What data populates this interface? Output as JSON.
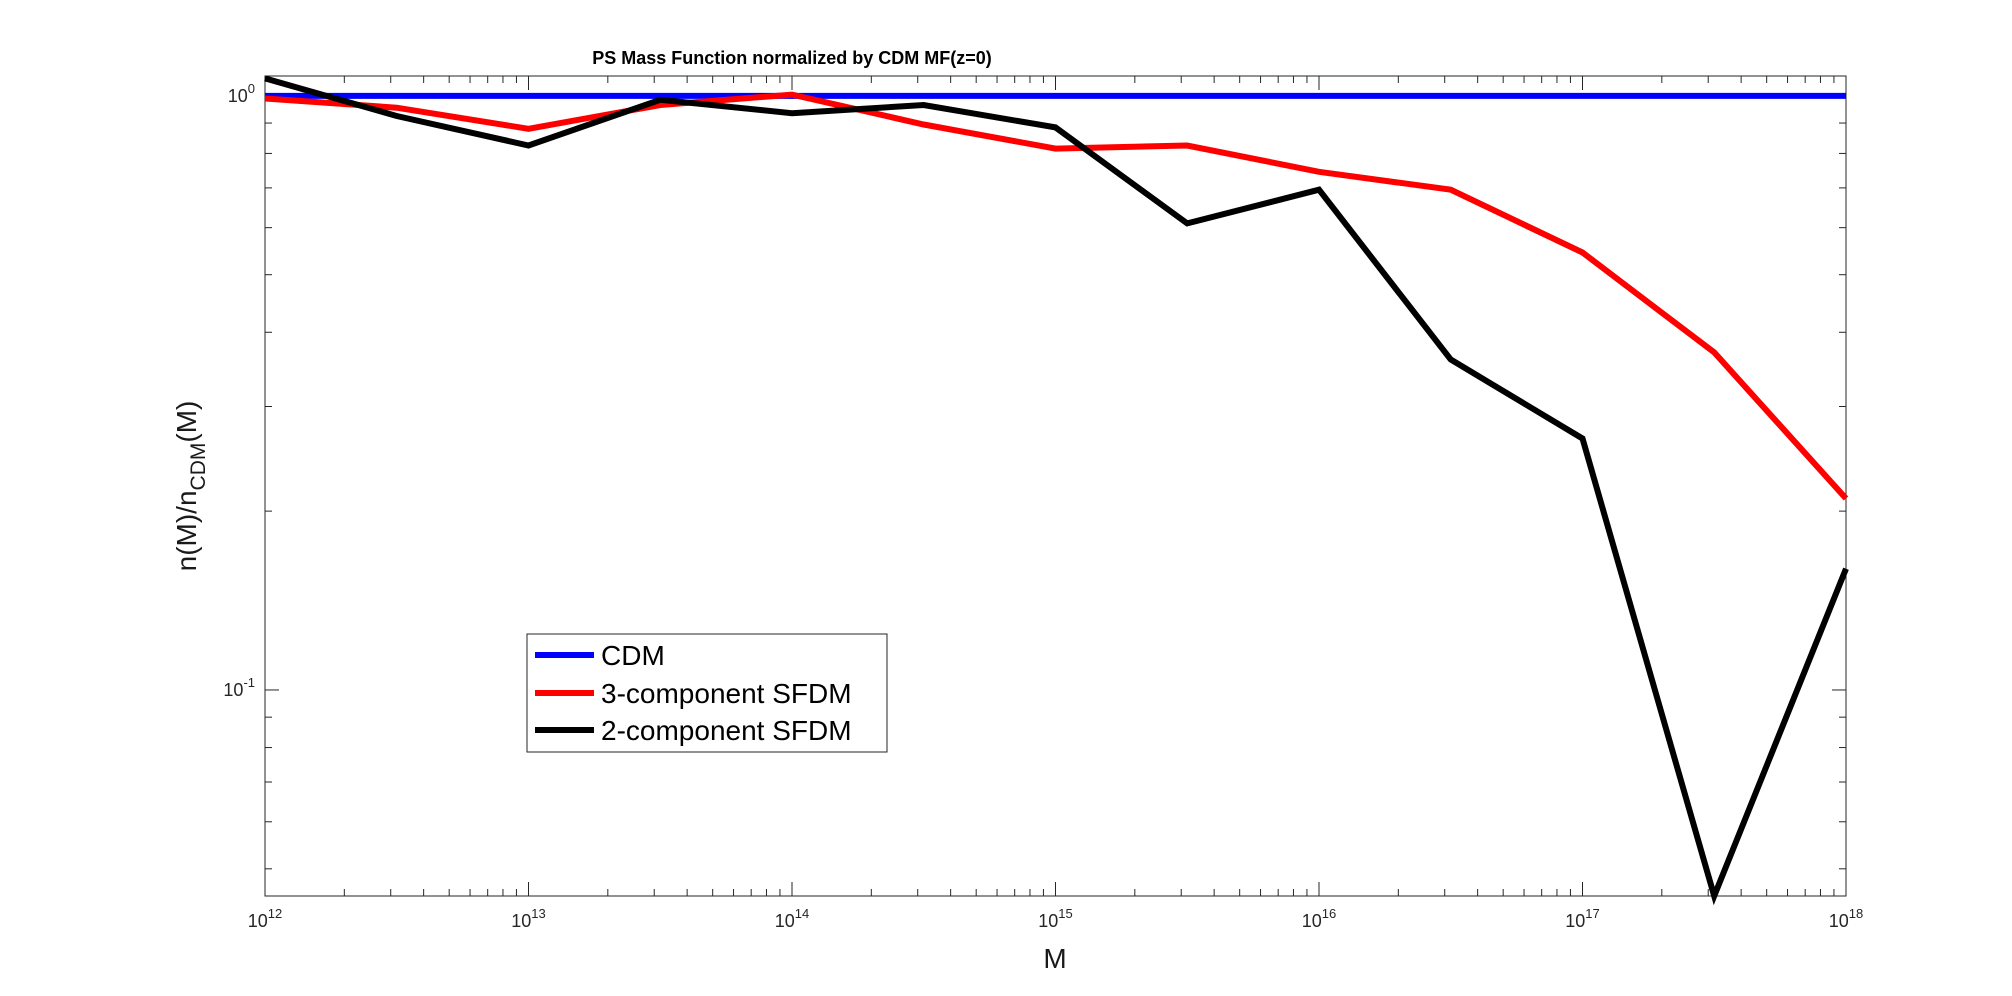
{
  "chart_data": {
    "type": "line",
    "title": "PS Mass Function normalized by CDM MF(z=0)",
    "xlabel": "M",
    "ylabel_main": "n(M)/n",
    "ylabel_sub": "CDM",
    "ylabel_tail": "(M)",
    "xscale": "log",
    "yscale": "log",
    "xlim": [
      1000000000000.0,
      1e+18
    ],
    "ylim": [
      0.045,
      1.08
    ],
    "x_ticks": [
      {
        "base": "10",
        "exp": "12",
        "value": 1000000000000.0
      },
      {
        "base": "10",
        "exp": "13",
        "value": 10000000000000.0
      },
      {
        "base": "10",
        "exp": "14",
        "value": 100000000000000.0
      },
      {
        "base": "10",
        "exp": "15",
        "value": 1000000000000000.0
      },
      {
        "base": "10",
        "exp": "16",
        "value": 1e+16
      },
      {
        "base": "10",
        "exp": "17",
        "value": 1e+17
      },
      {
        "base": "10",
        "exp": "18",
        "value": 1e+18
      }
    ],
    "y_ticks": [
      {
        "base": "10",
        "exp": "0",
        "value": 1
      },
      {
        "base": "10",
        "exp": "-1",
        "value": 0.1
      }
    ],
    "grid": false,
    "legend_position": "lower-left",
    "x": [
      1000000000000.0,
      3160000000000.0,
      10000000000000.0,
      31600000000000.0,
      100000000000000.0,
      316000000000000.0,
      1000000000000000.0,
      3160000000000000.0,
      1e+16,
      3.16e+16,
      1e+17,
      3.16e+17,
      1e+18
    ],
    "series": [
      {
        "name": "CDM",
        "color": "#0000ff",
        "values": [
          1,
          1,
          1,
          1,
          1,
          1,
          1,
          1,
          1,
          1,
          1,
          1,
          1
        ]
      },
      {
        "name": "3-component SFDM",
        "color": "#ff0000",
        "values": [
          0.99,
          0.955,
          0.88,
          0.965,
          1.005,
          0.895,
          0.815,
          0.825,
          0.745,
          0.695,
          0.545,
          0.37,
          0.21
        ]
      },
      {
        "name": "2-component SFDM",
        "color": "#000000",
        "values": [
          1.07,
          0.925,
          0.825,
          0.985,
          0.935,
          0.965,
          0.885,
          0.61,
          0.695,
          0.36,
          0.265,
          0.045,
          0.16
        ]
      }
    ]
  }
}
